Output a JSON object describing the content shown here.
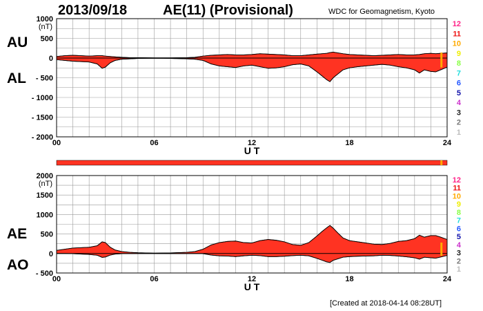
{
  "header": {
    "date": "2013/09/18",
    "index_title": "AE(11) (Provisional)",
    "source": "WDC for Geomagnetism, Kyoto"
  },
  "footer": {
    "created": "[Created at 2018-04-14 08:28UT]"
  },
  "station_scale": {
    "labels": [
      "12",
      "11",
      "10",
      "9",
      "8",
      "7",
      "6",
      "5",
      "4",
      "3",
      "2",
      "1"
    ],
    "colors": [
      "#ff2288",
      "#ee1111",
      "#ffaa00",
      "#eeee00",
      "#88ff44",
      "#22dddd",
      "#2255ff",
      "#1111aa",
      "#cc33cc",
      "#222222",
      "#777777",
      "#bbbbbb"
    ]
  },
  "colors": {
    "fill": "#ff3322",
    "bar": "#ff3322",
    "bar_marker": "#ffaa00",
    "grid": "#999999"
  },
  "chart_data": [
    {
      "type": "area",
      "name": "AU/AL panel",
      "unit_label": "(nT)",
      "left_labels": [
        "AU",
        "AL"
      ],
      "xlabel": "U T",
      "xticks": [
        "00",
        "06",
        "12",
        "18",
        "24"
      ],
      "xlim": [
        0,
        24
      ],
      "ylim": [
        -2000,
        1000
      ],
      "yticks": [
        1000,
        500,
        0,
        -500,
        -1000,
        -1500,
        -2000
      ],
      "ytick_labels": [
        "1000",
        "500",
        "0",
        "- 500",
        "- 1000",
        "- 1500",
        "- 2000"
      ],
      "x": [
        0,
        0.5,
        1,
        1.5,
        2,
        2.5,
        2.8,
        3,
        3.3,
        3.6,
        4,
        4.5,
        5,
        6,
        7,
        8,
        8.5,
        9,
        9.5,
        10,
        10.5,
        11,
        11.5,
        12,
        12.5,
        13,
        13.5,
        14,
        14.5,
        15,
        15.5,
        16,
        16.3,
        16.6,
        16.8,
        17,
        17.3,
        17.6,
        18,
        18.5,
        19,
        19.5,
        20,
        20.5,
        21,
        21.5,
        22,
        22.3,
        22.6,
        23,
        23.3,
        23.6,
        24
      ],
      "series": [
        {
          "name": "AU",
          "values": [
            40,
            60,
            70,
            60,
            50,
            60,
            60,
            50,
            40,
            30,
            20,
            10,
            10,
            5,
            5,
            10,
            20,
            50,
            70,
            80,
            90,
            80,
            80,
            90,
            110,
            100,
            90,
            80,
            60,
            60,
            80,
            100,
            110,
            120,
            140,
            150,
            130,
            110,
            90,
            80,
            70,
            60,
            70,
            80,
            90,
            80,
            80,
            90,
            110,
            120,
            110,
            120,
            130
          ]
        },
        {
          "name": "AL",
          "values": [
            -40,
            -60,
            -80,
            -90,
            -100,
            -150,
            -260,
            -230,
            -120,
            -60,
            -30,
            -20,
            -10,
            -5,
            -10,
            -20,
            -30,
            -60,
            -150,
            -200,
            -220,
            -240,
            -200,
            -180,
            -220,
            -260,
            -250,
            -220,
            -170,
            -150,
            -200,
            -350,
            -450,
            -550,
            -600,
            -500,
            -400,
            -300,
            -250,
            -220,
            -200,
            -180,
            -160,
            -180,
            -220,
            -250,
            -300,
            -380,
            -300,
            -340,
            -350,
            -300,
            -230
          ]
        }
      ]
    },
    {
      "type": "area",
      "name": "AE/AO panel",
      "unit_label": "(nT)",
      "left_labels": [
        "AE",
        "AO"
      ],
      "xlabel": "U T",
      "xticks": [
        "00",
        "06",
        "12",
        "18",
        "24"
      ],
      "xlim": [
        0,
        24
      ],
      "ylim": [
        -500,
        2000
      ],
      "yticks": [
        2000,
        1500,
        1000,
        500,
        0,
        -500
      ],
      "ytick_labels": [
        "2000",
        "1500",
        "1000",
        "500",
        "0",
        "- 500"
      ],
      "x": [
        0,
        0.5,
        1,
        1.5,
        2,
        2.5,
        2.8,
        3,
        3.3,
        3.6,
        4,
        4.5,
        5,
        6,
        7,
        8,
        8.5,
        9,
        9.5,
        10,
        10.5,
        11,
        11.5,
        12,
        12.5,
        13,
        13.5,
        14,
        14.5,
        15,
        15.5,
        16,
        16.3,
        16.6,
        16.8,
        17,
        17.3,
        17.6,
        18,
        18.5,
        19,
        19.5,
        20,
        20.5,
        21,
        21.5,
        22,
        22.3,
        22.6,
        23,
        23.3,
        23.6,
        24
      ],
      "series": [
        {
          "name": "AE",
          "values": [
            80,
            110,
            140,
            150,
            160,
            200,
            300,
            280,
            160,
            90,
            50,
            30,
            20,
            10,
            15,
            30,
            50,
            110,
            220,
            280,
            310,
            320,
            280,
            270,
            330,
            360,
            340,
            300,
            230,
            210,
            280,
            450,
            560,
            660,
            720,
            650,
            520,
            400,
            330,
            300,
            270,
            240,
            230,
            260,
            310,
            330,
            380,
            470,
            420,
            460,
            460,
            420,
            360
          ]
        },
        {
          "name": "AO",
          "values": [
            0,
            0,
            -5,
            -15,
            -25,
            -45,
            -100,
            -90,
            -40,
            -15,
            -5,
            -5,
            0,
            0,
            -2,
            -5,
            -5,
            -5,
            -40,
            -60,
            -65,
            -80,
            -60,
            -45,
            -55,
            -80,
            -80,
            -70,
            -55,
            -45,
            -60,
            -125,
            -170,
            -215,
            -230,
            -175,
            -135,
            -95,
            -80,
            -70,
            -65,
            -60,
            -45,
            -50,
            -65,
            -85,
            -110,
            -145,
            -95,
            -110,
            -120,
            -90,
            -50
          ]
        }
      ]
    }
  ]
}
